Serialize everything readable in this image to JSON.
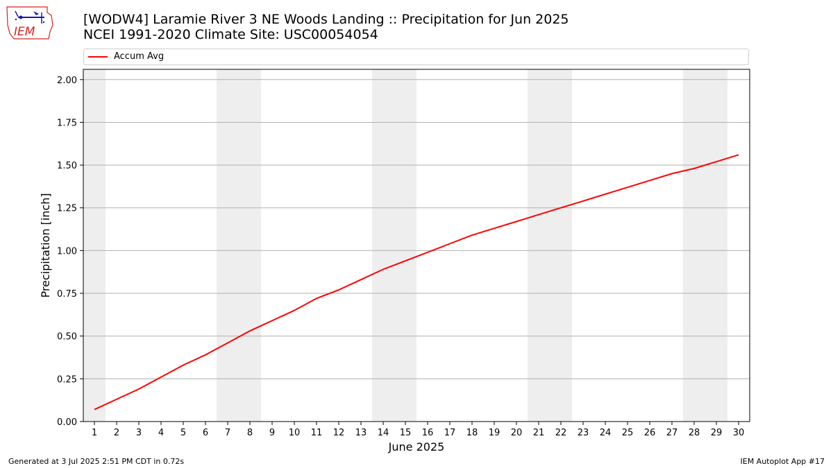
{
  "header": {
    "title_line1": "[WODW4] Laramie River 3 NE Woods Landing :: Precipitation for Jun 2025",
    "title_line2": "NCEI 1991-2020 Climate Site: USC00054054"
  },
  "logo": {
    "text": "IEM",
    "color": "#d9231f",
    "accent": "#1a1aa8"
  },
  "footer": {
    "left": "Generated at 3 Jul 2025 2:51 PM CDT in 0.72s",
    "right": "IEM Autoplot App #17"
  },
  "chart_data": {
    "type": "line",
    "xlabel": "June 2025",
    "ylabel": "Precipitation [inch]",
    "xlim": [
      0.5,
      30.5
    ],
    "ylim": [
      0,
      2.06
    ],
    "x": [
      1,
      2,
      3,
      4,
      5,
      6,
      7,
      8,
      9,
      10,
      11,
      12,
      13,
      14,
      15,
      16,
      17,
      18,
      19,
      20,
      21,
      22,
      23,
      24,
      25,
      26,
      27,
      28,
      29,
      30
    ],
    "x_tick_labels": [
      "1",
      "2",
      "3",
      "4",
      "5",
      "6",
      "7",
      "8",
      "9",
      "10",
      "11",
      "12",
      "13",
      "14",
      "15",
      "16",
      "17",
      "18",
      "19",
      "20",
      "21",
      "22",
      "23",
      "24",
      "25",
      "26",
      "27",
      "28",
      "29",
      "30"
    ],
    "y_ticks": [
      0,
      0.25,
      0.5,
      0.75,
      1.0,
      1.25,
      1.5,
      1.75,
      2.0
    ],
    "y_tick_labels": [
      "0.00",
      "0.25",
      "0.50",
      "0.75",
      "1.00",
      "1.25",
      "1.50",
      "1.75",
      "2.00"
    ],
    "series": [
      {
        "name": "Accum Avg",
        "color": "#ff0000",
        "values": [
          0.07,
          0.13,
          0.19,
          0.26,
          0.33,
          0.39,
          0.46,
          0.53,
          0.59,
          0.65,
          0.72,
          0.77,
          0.83,
          0.89,
          0.94,
          0.99,
          1.04,
          1.09,
          1.13,
          1.17,
          1.21,
          1.25,
          1.29,
          1.33,
          1.37,
          1.41,
          1.45,
          1.48,
          1.52,
          1.56
        ]
      }
    ],
    "weekend_shading": [
      [
        0.5,
        1.5
      ],
      [
        6.5,
        8.5
      ],
      [
        13.5,
        15.5
      ],
      [
        20.5,
        22.5
      ],
      [
        27.5,
        29.5
      ]
    ],
    "shade_color": "#eeeeee",
    "grid": "horizontal",
    "legend_position": "top"
  }
}
